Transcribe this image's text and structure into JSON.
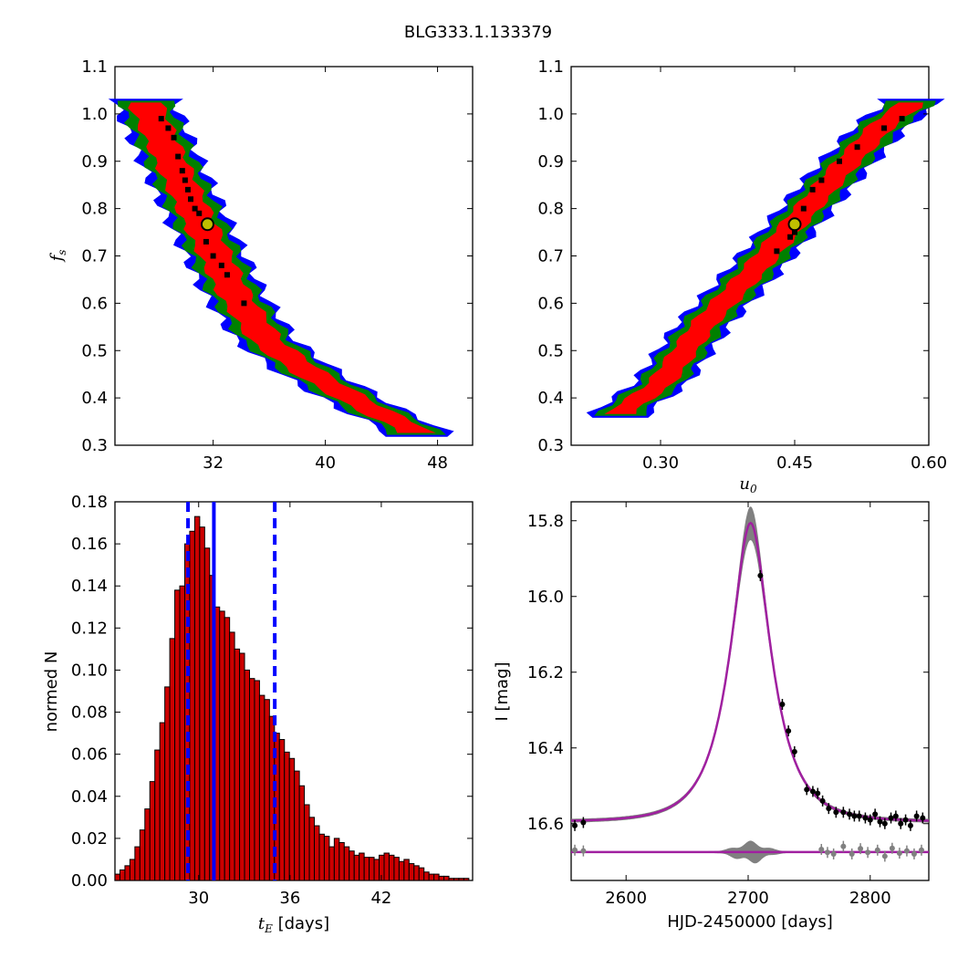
{
  "title": "BLG333.1.133379",
  "chart_data": [
    {
      "id": "tE_vs_fs",
      "type": "heatmap",
      "xlabel": "",
      "ylabel": "f_s",
      "xticks": [
        "32",
        "40",
        "48"
      ],
      "yticks": [
        "0.3",
        "0.4",
        "0.5",
        "0.6",
        "0.7",
        "0.8",
        "0.9",
        "1.0",
        "1.1"
      ],
      "xlim": [
        25,
        50.5
      ],
      "ylim": [
        0.3,
        1.1
      ],
      "colors": {
        "3sigma": "#0000ff",
        "2sigma": "#008000",
        "1sigma": "#ff0000",
        "best": "#000000",
        "marker_edge": "#000000",
        "marker_fill": "#bfbf00"
      },
      "best_fit": {
        "x": 31.6,
        "y": 0.767
      },
      "band": {
        "ridge": [
          [
            27.2,
            1.02
          ],
          [
            29.0,
            0.9
          ],
          [
            31.2,
            0.76
          ],
          [
            33.5,
            0.62
          ],
          [
            35.8,
            0.52
          ],
          [
            39.0,
            0.45
          ],
          [
            43.0,
            0.38
          ],
          [
            46.5,
            0.33
          ]
        ],
        "halfwidth_1sigma": 0.055,
        "halfwidth_2sigma": 0.085,
        "halfwidth_3sigma": 0.105
      },
      "black_points": [
        [
          28.3,
          0.99
        ],
        [
          28.8,
          0.97
        ],
        [
          29.2,
          0.95
        ],
        [
          29.5,
          0.91
        ],
        [
          29.8,
          0.88
        ],
        [
          30.0,
          0.86
        ],
        [
          30.2,
          0.84
        ],
        [
          30.4,
          0.82
        ],
        [
          30.7,
          0.8
        ],
        [
          31.0,
          0.79
        ],
        [
          31.5,
          0.73
        ],
        [
          32.0,
          0.7
        ],
        [
          32.6,
          0.68
        ],
        [
          33.0,
          0.66
        ],
        [
          34.2,
          0.6
        ]
      ]
    },
    {
      "id": "u0_vs_fs",
      "type": "heatmap",
      "xlabel": "u_0",
      "ylabel": "",
      "xticks": [
        "0.30",
        "0.45",
        "0.60"
      ],
      "yticks": [
        "0.3",
        "0.4",
        "0.5",
        "0.6",
        "0.7",
        "0.8",
        "0.9",
        "1.0",
        "1.1"
      ],
      "xlim": [
        0.2,
        0.6
      ],
      "ylim": [
        0.3,
        1.1
      ],
      "colors": {
        "3sigma": "#0000ff",
        "2sigma": "#008000",
        "1sigma": "#ff0000",
        "best": "#000000",
        "marker_edge": "#000000",
        "marker_fill": "#bfbf00"
      },
      "best_fit": {
        "x": 0.45,
        "y": 0.767
      },
      "band": {
        "ridge": [
          [
            0.255,
            0.37
          ],
          [
            0.3,
            0.43
          ],
          [
            0.35,
            0.56
          ],
          [
            0.4,
            0.66
          ],
          [
            0.45,
            0.77
          ],
          [
            0.5,
            0.88
          ],
          [
            0.55,
            0.98
          ],
          [
            0.58,
            1.02
          ]
        ],
        "halfwidth_1sigma": 0.045,
        "halfwidth_2sigma": 0.075,
        "halfwidth_3sigma": 0.095
      },
      "black_points": [
        [
          0.43,
          0.71
        ],
        [
          0.445,
          0.74
        ],
        [
          0.45,
          0.75
        ],
        [
          0.46,
          0.8
        ],
        [
          0.47,
          0.84
        ],
        [
          0.48,
          0.86
        ],
        [
          0.5,
          0.9
        ],
        [
          0.52,
          0.93
        ],
        [
          0.55,
          0.97
        ],
        [
          0.57,
          0.99
        ]
      ]
    },
    {
      "id": "tE_histogram",
      "type": "bar",
      "xlabel": "t_E [days]",
      "ylabel": "normed N",
      "xticks": [
        "30",
        "36",
        "42"
      ],
      "yticks": [
        "0.00",
        "0.02",
        "0.04",
        "0.06",
        "0.08",
        "0.10",
        "0.12",
        "0.14",
        "0.16",
        "0.18"
      ],
      "xlim": [
        24.5,
        48.0
      ],
      "ylim": [
        0.0,
        0.18
      ],
      "bin_start": 24.5,
      "bin_width": 0.3275,
      "values": [
        0.003,
        0.005,
        0.007,
        0.01,
        0.016,
        0.024,
        0.034,
        0.047,
        0.062,
        0.075,
        0.092,
        0.115,
        0.138,
        0.14,
        0.16,
        0.166,
        0.173,
        0.168,
        0.158,
        0.145,
        0.13,
        0.128,
        0.125,
        0.118,
        0.11,
        0.108,
        0.1,
        0.096,
        0.095,
        0.088,
        0.086,
        0.078,
        0.07,
        0.067,
        0.061,
        0.058,
        0.052,
        0.045,
        0.036,
        0.03,
        0.026,
        0.022,
        0.021,
        0.016,
        0.02,
        0.018,
        0.016,
        0.014,
        0.012,
        0.013,
        0.011,
        0.011,
        0.01,
        0.012,
        0.013,
        0.012,
        0.011,
        0.009,
        0.01,
        0.008,
        0.007,
        0.006,
        0.004,
        0.003,
        0.003,
        0.002,
        0.002,
        0.001,
        0.001,
        0.001,
        0.001,
        0.001
      ],
      "median": 31.0,
      "lower": 29.3,
      "upper": 35.0,
      "colors": {
        "bar": "#cc0000",
        "edge": "#000000",
        "lines": "#0000ff"
      }
    },
    {
      "id": "lightcurve",
      "type": "line",
      "xlabel": "HJD-2450000 [days]",
      "ylabel": "I [mag]",
      "xticks": [
        "2600",
        "2700",
        "2800"
      ],
      "yticks": [
        "15.8",
        "16.0",
        "16.2",
        "16.4",
        "16.6"
      ],
      "xlim": [
        2555,
        2848
      ],
      "ylim": [
        16.75,
        15.75
      ],
      "model": {
        "t0": 2702,
        "tE": 31.0,
        "u0": 0.45,
        "fs": 0.77,
        "I0": 16.595
      },
      "residual_offset": 16.675,
      "colors": {
        "model": "#a020a0",
        "band": "#808080",
        "points": "#000000",
        "residual_points": "#808080"
      },
      "data_points": [
        [
          2558,
          16.605
        ],
        [
          2565,
          16.597
        ],
        [
          2710,
          15.945
        ],
        [
          2728,
          16.285
        ],
        [
          2733,
          16.355
        ],
        [
          2738,
          16.41
        ],
        [
          2748,
          16.51
        ],
        [
          2753,
          16.515
        ],
        [
          2757,
          16.52
        ],
        [
          2761,
          16.54
        ],
        [
          2766,
          16.56
        ],
        [
          2772,
          16.57
        ],
        [
          2778,
          16.57
        ],
        [
          2783,
          16.575
        ],
        [
          2787,
          16.58
        ],
        [
          2791,
          16.58
        ],
        [
          2796,
          16.585
        ],
        [
          2800,
          16.59
        ],
        [
          2804,
          16.575
        ],
        [
          2808,
          16.595
        ],
        [
          2812,
          16.6
        ],
        [
          2817,
          16.585
        ],
        [
          2821,
          16.58
        ],
        [
          2825,
          16.6
        ],
        [
          2829,
          16.59
        ],
        [
          2833,
          16.605
        ],
        [
          2838,
          16.58
        ],
        [
          2843,
          16.585
        ]
      ],
      "residual_points": [
        [
          2558,
          16.67
        ],
        [
          2565,
          16.672
        ],
        [
          2760,
          16.668
        ],
        [
          2765,
          16.676
        ],
        [
          2770,
          16.68
        ],
        [
          2778,
          16.66
        ],
        [
          2785,
          16.68
        ],
        [
          2792,
          16.666
        ],
        [
          2798,
          16.676
        ],
        [
          2806,
          16.67
        ],
        [
          2812,
          16.686
        ],
        [
          2818,
          16.665
        ],
        [
          2824,
          16.678
        ],
        [
          2830,
          16.672
        ],
        [
          2836,
          16.68
        ],
        [
          2842,
          16.67
        ]
      ]
    }
  ]
}
